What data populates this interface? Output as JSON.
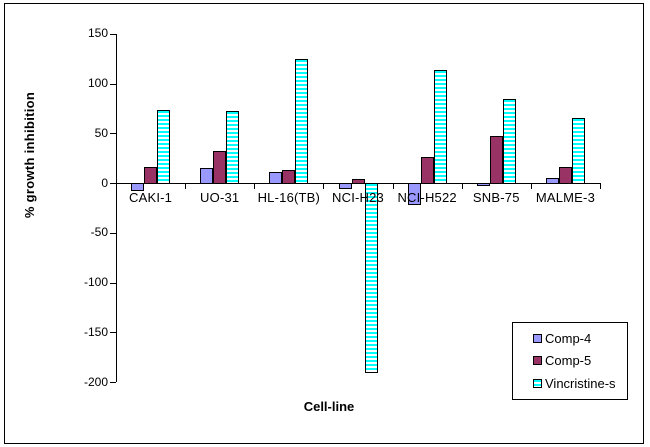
{
  "window": {
    "background": "#FFFFFF",
    "frame_border_color": "#000000"
  },
  "chart_data": {
    "type": "bar",
    "title": "",
    "xlabel": "Cell-line",
    "ylabel": "% growth inhibition",
    "categories": [
      "CAKI-1",
      "UO-31",
      "HL-16(TB)",
      "NCI-H23",
      "NCI-H522",
      "SNB-75",
      "MALME-3"
    ],
    "series": [
      {
        "name": "Comp-4",
        "color": "#9999FF",
        "pattern": "solid",
        "values": [
          -7,
          15,
          11,
          -5,
          -21,
          -2,
          5
        ]
      },
      {
        "name": "Comp-5",
        "color": "#993366",
        "pattern": "solid",
        "values": [
          16,
          32,
          13,
          4,
          26,
          47,
          16
        ]
      },
      {
        "name": "Vincristine-s",
        "color": "#00FFFF",
        "pattern": "horizontal-stripes",
        "values": [
          73,
          72,
          125,
          -190,
          114,
          84,
          65
        ]
      }
    ],
    "ylim": [
      -200,
      150
    ],
    "yticks": [
      150,
      100,
      50,
      0,
      -50,
      -100,
      -150,
      -200
    ],
    "grid": false,
    "legend_position": "bottom-right",
    "bar_border_color": "#000000",
    "stripe_background": "#FFFFFF"
  }
}
